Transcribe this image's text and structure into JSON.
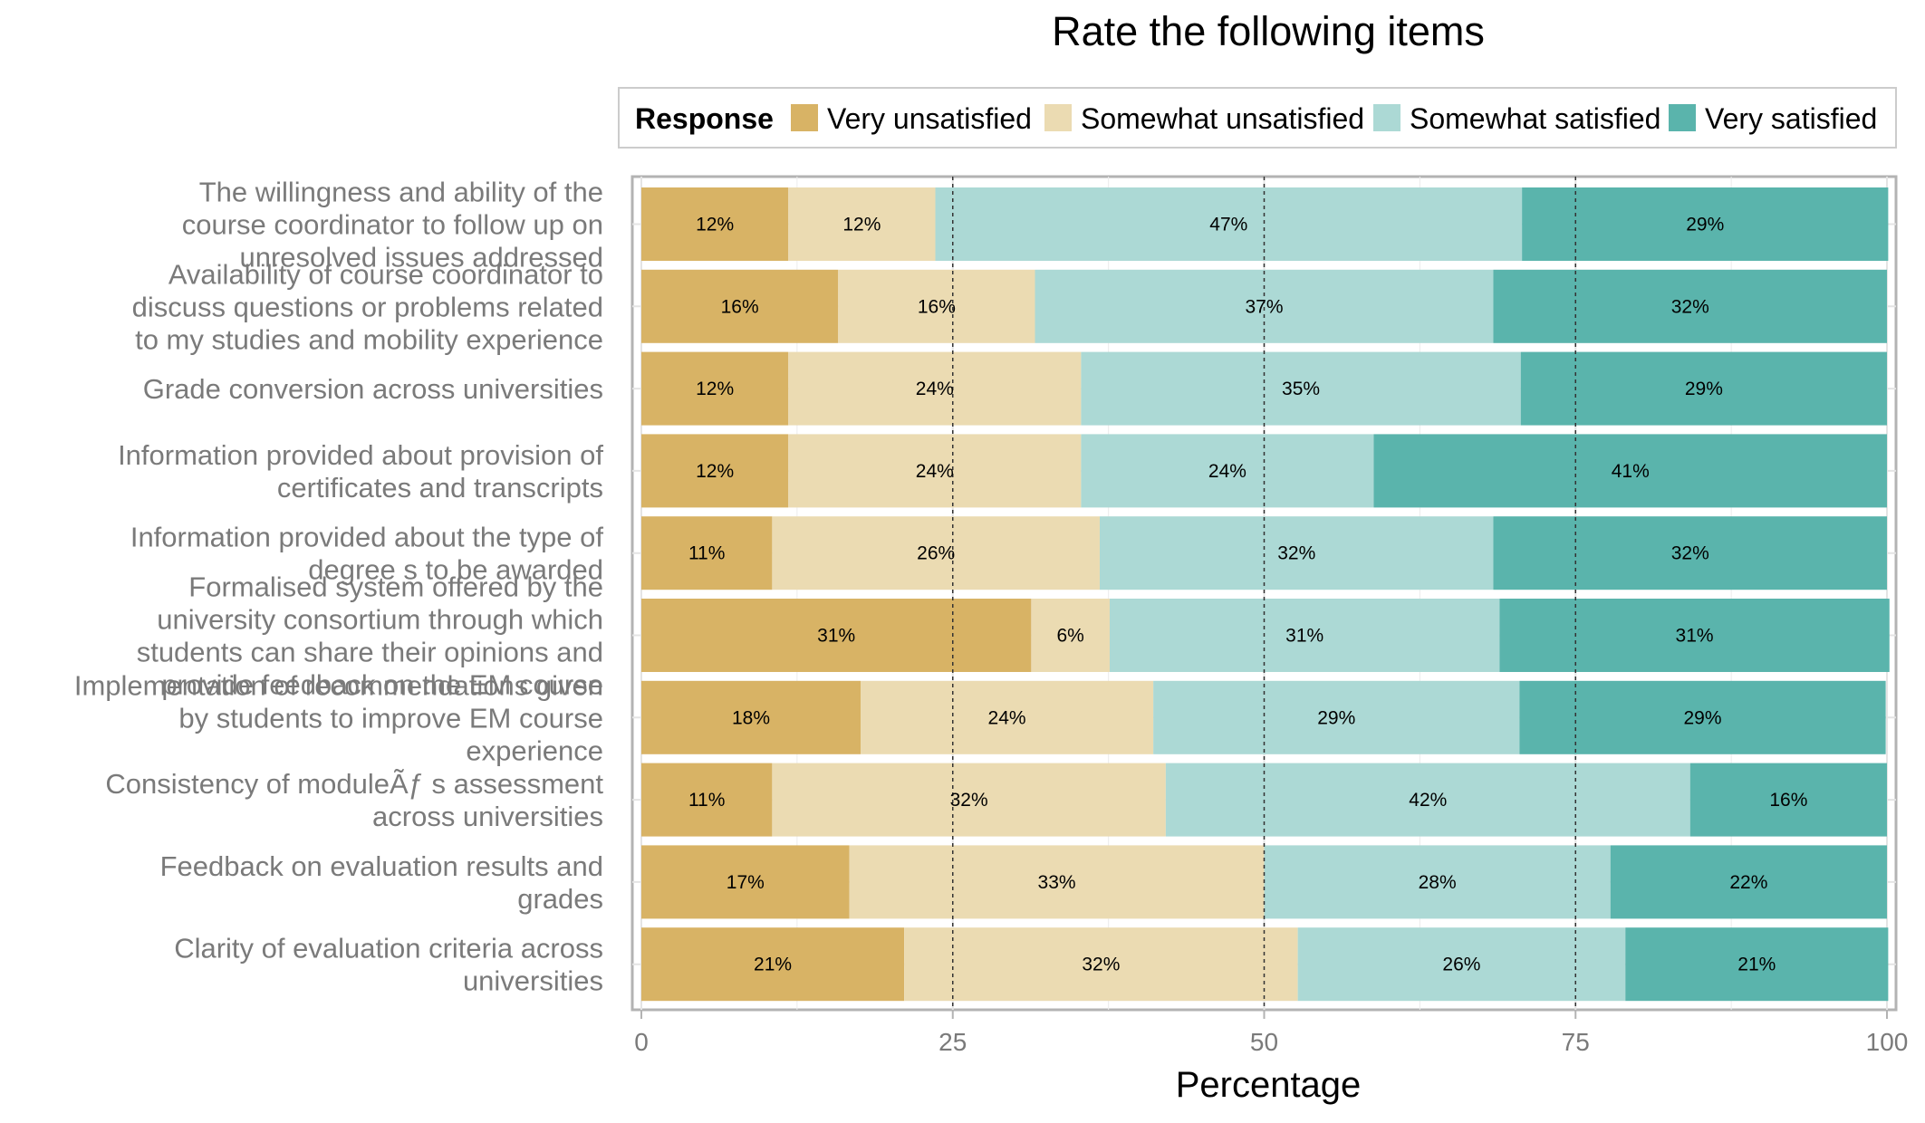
{
  "chart_data": {
    "type": "bar",
    "orientation": "horizontal",
    "stacked": true,
    "title": "Rate the following items",
    "xlabel": "Percentage",
    "ylabel": "",
    "xlim": [
      0,
      100
    ],
    "x_ticks": [
      0,
      25,
      50,
      75,
      100
    ],
    "reference_lines": [
      25,
      50,
      75
    ],
    "grid": true,
    "legend": {
      "title": "Response",
      "placement": "top"
    },
    "categories": [
      "The willingness and ability of the course coordinator to follow up on unresolved issues addressed",
      "Availability of course coordinator to discuss questions or problems related to my studies and mobility experience",
      "Grade conversion across universities",
      "Information provided about provision of certificates and transcripts",
      "Information provided about the type of degree s to be awarded",
      "Formalised system offered by the university consortium through which students can share their opinions and provide feedback on the EM course",
      "Implementation of recommendations given by students to improve EM course experience",
      "Consistency of moduleÃƒ s assessment across universities",
      "Feedback on evaluation results and grades",
      "Clarity of evaluation criteria across universities"
    ],
    "category_lines": [
      [
        "The willingness and ability of the",
        "course coordinator to follow up on",
        "unresolved issues addressed"
      ],
      [
        "Availability of course coordinator to",
        "discuss questions or problems related",
        "to my studies and mobility experience"
      ],
      [
        "Grade conversion across universities"
      ],
      [
        "Information provided about provision of",
        "certificates and transcripts"
      ],
      [
        "Information provided about the type of",
        "degree s to be awarded"
      ],
      [
        "Formalised system offered by the",
        "university consortium through which",
        "students can share their opinions and",
        "provide feedback on the EM course"
      ],
      [
        "Implementation of recommendations given",
        "by students to improve EM course",
        "experience"
      ],
      [
        "Consistency of moduleÃƒ s assessment",
        "across universities"
      ],
      [
        "Feedback on evaluation results and",
        "grades"
      ],
      [
        "Clarity of evaluation criteria across",
        "universities"
      ]
    ],
    "series": [
      {
        "name": "Very unsatisfied",
        "color": "#d8b365",
        "values": [
          11.8,
          15.8,
          11.8,
          11.8,
          10.5,
          31.3,
          17.6,
          10.5,
          16.7,
          21.1
        ]
      },
      {
        "name": "Somewhat unsatisfied",
        "color": "#ebdbb2",
        "values": [
          11.8,
          15.8,
          23.5,
          23.5,
          26.3,
          6.3,
          23.5,
          31.6,
          33.3,
          31.6
        ]
      },
      {
        "name": "Somewhat satisfied",
        "color": "#acd9d5",
        "values": [
          47.1,
          36.8,
          35.3,
          23.5,
          31.6,
          31.3,
          29.4,
          42.1,
          27.8,
          26.3
        ]
      },
      {
        "name": "Very satisfied",
        "color": "#5ab4ac",
        "values": [
          29.4,
          31.6,
          29.4,
          41.2,
          31.6,
          31.3,
          29.4,
          15.8,
          22.2,
          21.1
        ]
      }
    ],
    "data_labels": [
      [
        "12%",
        "12%",
        "47%",
        "29%"
      ],
      [
        "16%",
        "16%",
        "37%",
        "32%"
      ],
      [
        "12%",
        "24%",
        "35%",
        "29%"
      ],
      [
        "12%",
        "24%",
        "24%",
        "41%"
      ],
      [
        "11%",
        "26%",
        "32%",
        "32%"
      ],
      [
        "31%",
        "6%",
        "31%",
        "31%"
      ],
      [
        "18%",
        "24%",
        "29%",
        "29%"
      ],
      [
        "11%",
        "32%",
        "42%",
        "16%"
      ],
      [
        "17%",
        "33%",
        "28%",
        "22%"
      ],
      [
        "21%",
        "32%",
        "26%",
        "21%"
      ]
    ]
  }
}
